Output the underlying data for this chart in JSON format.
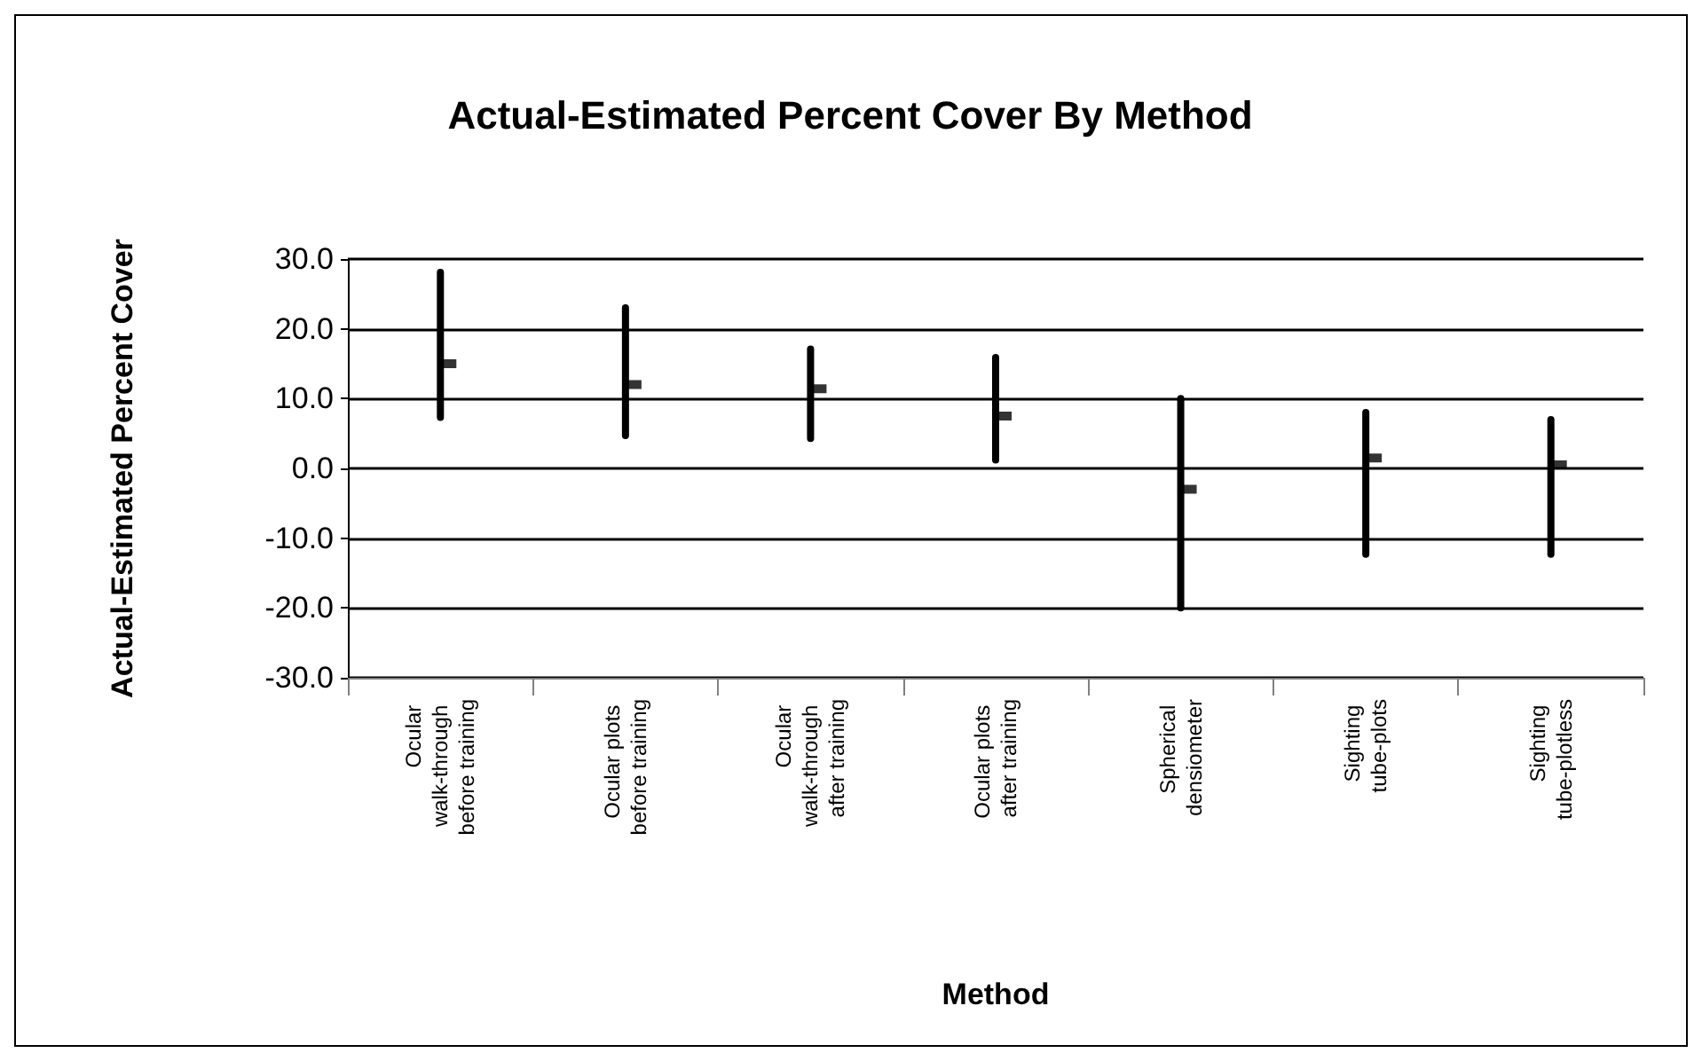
{
  "chart_data": {
    "type": "scatter",
    "title": "Actual-Estimated Percent Cover By Method",
    "xlabel": "Method",
    "ylabel": "Actual-Estimated Percent Cover",
    "categories": [
      "Ocular walk-through before training",
      "Ocular plots before training",
      "Ocular walk-through after training",
      "Ocular plots after training",
      "Spherical densiometer",
      "Sighting tube-plots",
      "Sighting tube-plotless"
    ],
    "values": [
      15.0,
      12.0,
      11.4,
      7.5,
      -3.0,
      1.5,
      0.5
    ],
    "errors": [
      [
        7.3,
        28.1
      ],
      [
        4.7,
        23.0
      ],
      [
        4.3,
        17.1
      ],
      [
        1.2,
        15.9
      ],
      [
        -20.0,
        10.0
      ],
      [
        -12.3,
        8.0
      ],
      [
        -12.3,
        7.0
      ]
    ],
    "color": "#000000",
    "ylim": [
      -30,
      30
    ],
    "yticks": [
      {
        "value": -30,
        "label": "-30.0"
      },
      {
        "value": -20,
        "label": "-20.0"
      },
      {
        "value": -10,
        "label": "-10.0"
      },
      {
        "value": 0,
        "label": "0.0"
      },
      {
        "value": 10,
        "label": "10.0"
      },
      {
        "value": 20,
        "label": "20.0"
      },
      {
        "value": 30,
        "label": "30.0"
      }
    ],
    "grid": "y"
  }
}
